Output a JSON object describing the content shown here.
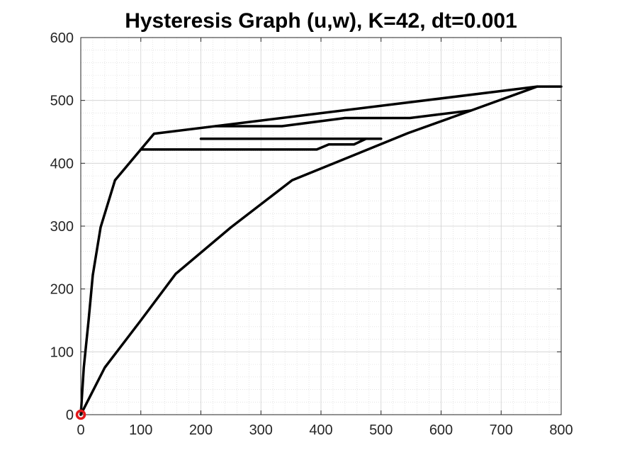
{
  "chart_data": {
    "type": "line",
    "title": "Hysteresis Graph (u,w), K=42, dt=0.001",
    "xlabel": "",
    "ylabel": "",
    "xlim": [
      0,
      800
    ],
    "ylim": [
      0,
      600
    ],
    "xticks": [
      "0",
      "100",
      "200",
      "300",
      "400",
      "500",
      "600",
      "700",
      "800"
    ],
    "yticks": [
      "0",
      "100",
      "200",
      "300",
      "400",
      "500",
      "600"
    ],
    "grid": "major and minor",
    "colors": {
      "line": "#000000",
      "marker": "#e31a1c",
      "grid": "#d9d9d9",
      "axes": "#262626"
    },
    "marker": {
      "x": 0,
      "y": 0,
      "shape": "circle",
      "color": "#e31a1c"
    },
    "series": [
      {
        "x": [
          0,
          5,
          13,
          20,
          33,
          57,
          122,
          760,
          800
        ],
        "y": [
          0,
          75,
          150,
          222,
          298,
          373,
          447,
          522,
          522
        ]
      },
      {
        "x": [
          760,
          650,
          545,
          352,
          250,
          158,
          100,
          40,
          0
        ],
        "y": [
          522,
          484,
          448,
          373,
          298,
          224,
          150,
          75,
          0
        ]
      },
      {
        "x": [
          650,
          548,
          440,
          335,
          225
        ],
        "y": [
          484,
          472,
          472,
          459,
          459
        ]
      },
      {
        "x": [
          100,
          393,
          413,
          455,
          475
        ],
        "y": [
          422,
          422,
          430,
          430,
          439
        ]
      },
      {
        "x": [
          200,
          500
        ],
        "y": [
          439,
          439
        ]
      }
    ]
  }
}
